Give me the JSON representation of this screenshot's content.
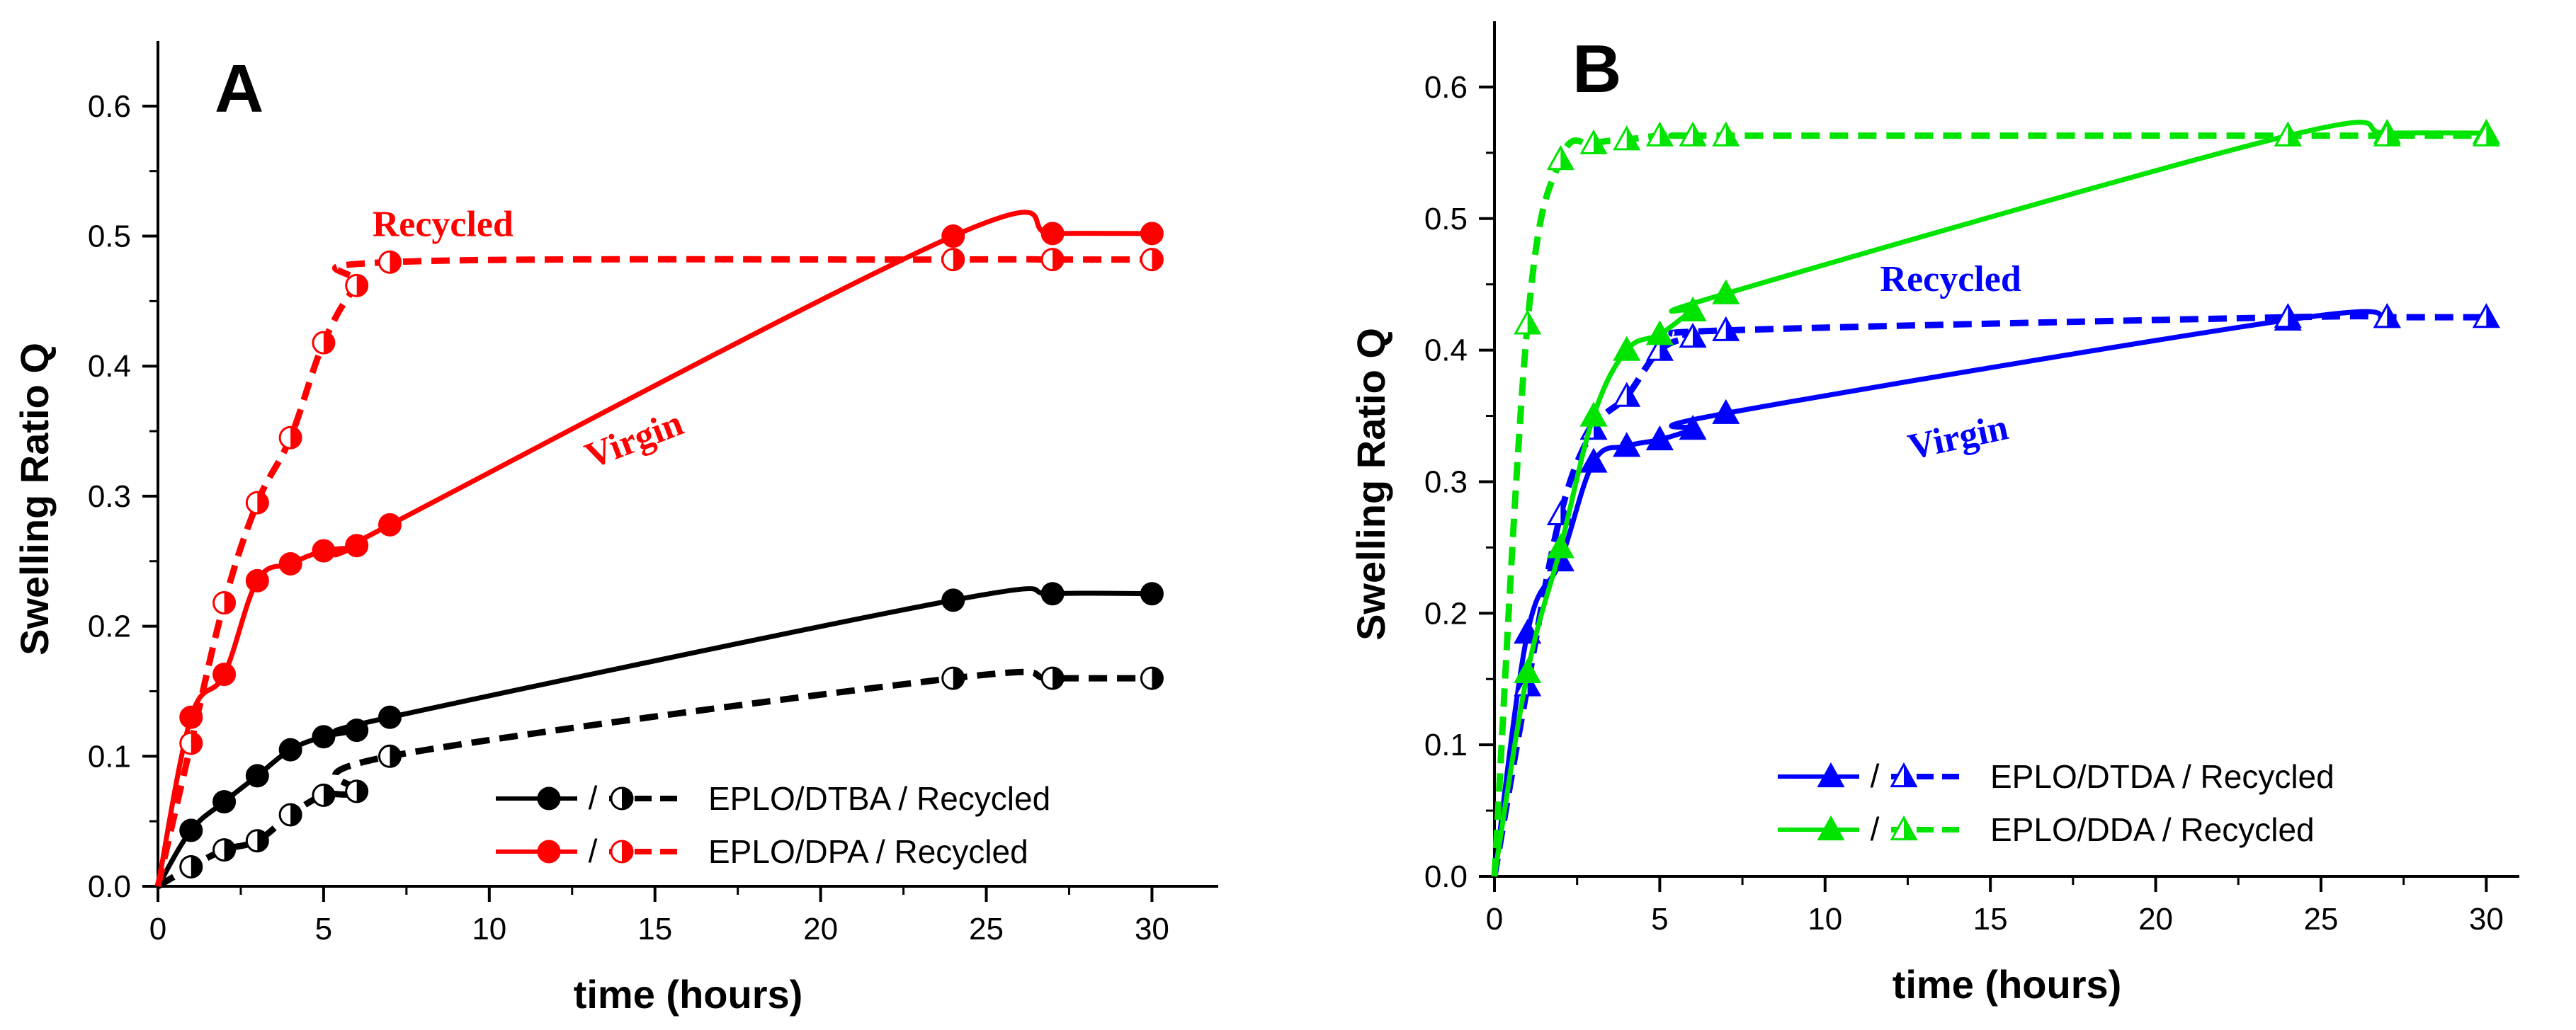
{
  "chart_data": [
    {
      "type": "line",
      "panel_label": "A",
      "xlabel": "time (hours)",
      "ylabel": "Swelling Ratio Q",
      "xlim": [
        0,
        32
      ],
      "ylim": [
        0,
        0.65
      ],
      "xticks": [
        0,
        5,
        10,
        15,
        20,
        25,
        30
      ],
      "yticks": [
        0.0,
        0.1,
        0.2,
        0.3,
        0.4,
        0.5,
        0.6
      ],
      "series": [
        {
          "key": "dtba_v",
          "name": "EPLO/DTBA",
          "color": "#000000",
          "dash": false,
          "marker": "circle",
          "fill": "full",
          "x": [
            0,
            1,
            2,
            3,
            4,
            5,
            6,
            7,
            24,
            27,
            30
          ],
          "y": [
            0,
            0.043,
            0.065,
            0.085,
            0.105,
            0.115,
            0.12,
            0.13,
            0.22,
            0.225,
            0.225
          ]
        },
        {
          "key": "dtba_r",
          "name": "EPLO/DTBA Recycled",
          "color": "#000000",
          "dash": true,
          "marker": "circle",
          "fill": "half",
          "x": [
            0,
            1,
            2,
            3,
            4,
            5,
            6,
            7,
            24,
            27,
            30
          ],
          "y": [
            0,
            0.015,
            0.028,
            0.035,
            0.055,
            0.07,
            0.073,
            0.1,
            0.16,
            0.16,
            0.16
          ]
        },
        {
          "key": "dpa_v",
          "name": "EPLO/DPA",
          "color": "#ff0000",
          "dash": false,
          "marker": "circle",
          "fill": "full",
          "x": [
            0,
            1,
            2,
            3,
            4,
            5,
            6,
            7,
            24,
            27,
            30
          ],
          "y": [
            0,
            0.13,
            0.163,
            0.235,
            0.248,
            0.258,
            0.262,
            0.278,
            0.5,
            0.502,
            0.502
          ]
        },
        {
          "key": "dpa_r",
          "name": "EPLO/DPA Recycled",
          "color": "#ff0000",
          "dash": true,
          "marker": "circle",
          "fill": "half",
          "x": [
            0,
            1,
            2,
            3,
            4,
            5,
            6,
            7,
            24,
            27,
            30
          ],
          "y": [
            0,
            0.11,
            0.218,
            0.295,
            0.345,
            0.418,
            0.462,
            0.48,
            0.482,
            0.482,
            0.482
          ]
        }
      ],
      "legend": [
        {
          "sep": "/",
          "label": "EPLO/DTBA / Recycled",
          "virgin": "dtba_v",
          "recycled": "dtba_r"
        },
        {
          "sep": "/",
          "label": "EPLO/DPA / Recycled",
          "virgin": "dpa_v",
          "recycled": "dpa_r"
        }
      ],
      "annotations": [
        {
          "text": "Recycled",
          "color": "#ff0000",
          "x": 8.6,
          "y": 0.5,
          "rotate": 0
        },
        {
          "text": "Virgin",
          "color": "#ff0000",
          "x": 14.5,
          "y": 0.335,
          "rotate": -21
        }
      ]
    },
    {
      "type": "line",
      "panel_label": "B",
      "xlabel": "time (hours)",
      "ylabel": "Swelling Ratio Q",
      "xlim": [
        0,
        31
      ],
      "ylim": [
        0,
        0.65
      ],
      "xticks": [
        0,
        5,
        10,
        15,
        20,
        25,
        30
      ],
      "yticks": [
        0.0,
        0.1,
        0.2,
        0.3,
        0.4,
        0.5,
        0.6
      ],
      "series": [
        {
          "key": "dtda_v",
          "name": "EPLO/DTDA",
          "color": "#0000ff",
          "dash": false,
          "marker": "triangle",
          "fill": "full",
          "x": [
            0,
            1,
            2,
            3,
            4,
            5,
            6,
            7,
            24,
            27
          ],
          "y": [
            0,
            0.185,
            0.24,
            0.315,
            0.327,
            0.332,
            0.34,
            0.352,
            0.423,
            0.425
          ]
        },
        {
          "key": "dtda_r",
          "name": "EPLO/DTDA Recycled",
          "color": "#0000ff",
          "dash": true,
          "marker": "triangle",
          "fill": "half",
          "x": [
            0,
            1,
            2,
            3,
            4,
            5,
            6,
            7,
            24,
            27,
            30
          ],
          "y": [
            0,
            0.145,
            0.275,
            0.34,
            0.365,
            0.4,
            0.41,
            0.415,
            0.425,
            0.425,
            0.425
          ]
        },
        {
          "key": "dda_v",
          "name": "EPLO/DDA",
          "color": "#00e400",
          "dash": false,
          "marker": "triangle",
          "fill": "full",
          "x": [
            0,
            1,
            2,
            3,
            4,
            5,
            6,
            7,
            24,
            27,
            30
          ],
          "y": [
            0,
            0.155,
            0.25,
            0.35,
            0.4,
            0.412,
            0.43,
            0.443,
            0.563,
            0.565,
            0.565
          ]
        },
        {
          "key": "dda_r",
          "name": "EPLO/DDA Recycled",
          "color": "#00e400",
          "dash": true,
          "marker": "triangle",
          "fill": "half",
          "x": [
            0,
            1,
            2,
            3,
            4,
            5,
            6,
            7,
            24,
            27,
            30
          ],
          "y": [
            0,
            0.42,
            0.545,
            0.557,
            0.56,
            0.563,
            0.563,
            0.563,
            0.563,
            0.563,
            0.563
          ]
        }
      ],
      "legend": [
        {
          "sep": "/",
          "label": "EPLO/DTDA / Recycled",
          "virgin": "dtda_v",
          "recycled": "dtda_r"
        },
        {
          "sep": "/",
          "label": "EPLO/DDA / Recycled",
          "virgin": "dda_v",
          "recycled": "dda_r"
        }
      ],
      "annotations": [
        {
          "text": "Recycled",
          "color": "#0000ff",
          "x": 13.8,
          "y": 0.445,
          "rotate": 0
        },
        {
          "text": "Virgin",
          "color": "#0000ff",
          "x": 14.1,
          "y": 0.325,
          "rotate": -12
        }
      ]
    }
  ]
}
